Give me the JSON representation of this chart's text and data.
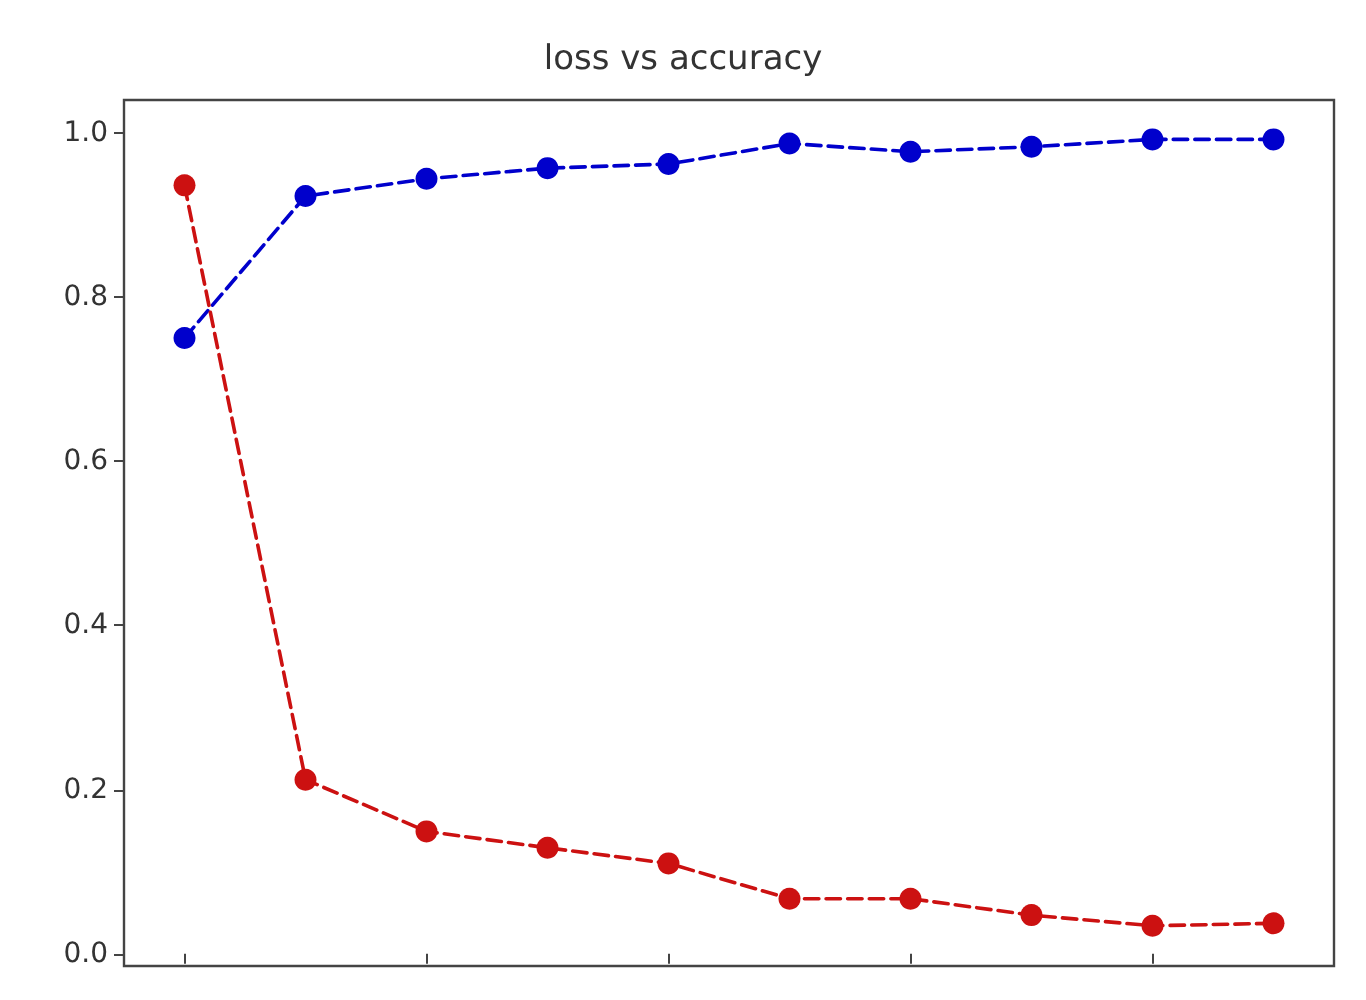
{
  "chart_data": {
    "type": "line",
    "title": "loss vs accuracy",
    "categories": [
      null,
      null,
      null,
      null,
      null,
      null,
      null,
      null,
      null,
      null
    ],
    "tick_labels": "y",
    "ylim": [
      -0.015,
      1.04
    ],
    "yticks": [
      {
        "value": 0,
        "label": "0.0"
      },
      {
        "value": 0.2,
        "label": "0.2"
      },
      {
        "value": 0.4,
        "label": "0.4"
      },
      {
        "value": 0.6,
        "label": "0.6"
      },
      {
        "value": 0.8,
        "label": "0.8"
      },
      {
        "value": 1,
        "label": "1.0"
      }
    ],
    "grid": false,
    "marker": "circle",
    "line_style": "dashed",
    "series": [
      {
        "color": "#0000cc",
        "values": [
          0.75,
          0.923,
          0.944,
          0.957,
          0.962,
          0.987,
          0.977,
          0.983,
          0.992,
          0.992
        ]
      },
      {
        "color": "#cc1111",
        "values": [
          0.936,
          0.212,
          0.149,
          0.129,
          0.11,
          0.067,
          0.067,
          0.047,
          0.034,
          0.037
        ]
      }
    ]
  }
}
